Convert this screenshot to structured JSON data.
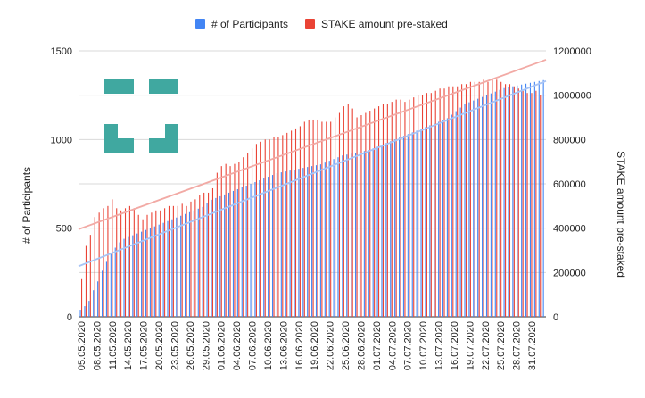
{
  "chart_data": {
    "type": "bar",
    "title": "",
    "legend": {
      "position": "top",
      "items": [
        {
          "name": "# of Participants",
          "color": "#4285f4"
        },
        {
          "name": "STAKE amount pre-staked",
          "color": "#ea4335"
        }
      ]
    },
    "left_axis": {
      "label": "# of Participants",
      "ylim": [
        0,
        1500
      ],
      "ticks": [
        "0",
        "500",
        "1000",
        "1500"
      ]
    },
    "right_axis": {
      "label": "STAKE amount pre-staked",
      "ylim": [
        0,
        1200000
      ],
      "ticks": [
        "0",
        "200000",
        "400000",
        "600000",
        "800000",
        "1000000",
        "1200000"
      ]
    },
    "x_tick_labels": [
      "05.05.2020",
      "08.05.2020",
      "11.05.2020",
      "14.05.2020",
      "17.05.2020",
      "20.05.2020",
      "23.05.2020",
      "26.05.2020",
      "29.05.2020",
      "01.06.2020",
      "04.06.2020",
      "07.06.2020",
      "10.06.2020",
      "13.06.2020",
      "16.06.2020",
      "19.06.2020",
      "22.06.2020",
      "25.06.2020",
      "28.06.2020",
      "01.07.2020",
      "04.07.2020",
      "07.07.2020",
      "10.07.2020",
      "13.07.2020",
      "16.07.2020",
      "19.07.2020",
      "22.07.2020",
      "25.07.2020",
      "28.07.2020",
      "31.07.2020"
    ],
    "gridlines": true,
    "series": [
      {
        "name": "# of Participants",
        "axis": "left",
        "color": "#4285f4",
        "values": [
          40,
          60,
          90,
          150,
          200,
          260,
          310,
          360,
          390,
          420,
          440,
          450,
          460,
          470,
          480,
          490,
          500,
          510,
          520,
          530,
          540,
          550,
          560,
          570,
          580,
          590,
          600,
          610,
          620,
          640,
          660,
          670,
          680,
          690,
          700,
          710,
          720,
          730,
          740,
          750,
          760,
          770,
          780,
          790,
          800,
          810,
          815,
          820,
          825,
          830,
          835,
          840,
          845,
          850,
          855,
          860,
          870,
          880,
          890,
          900,
          910,
          915,
          920,
          925,
          930,
          935,
          940,
          950,
          960,
          970,
          980,
          990,
          1000,
          1010,
          1020,
          1030,
          1040,
          1050,
          1060,
          1070,
          1080,
          1090,
          1100,
          1110,
          1120,
          1140,
          1160,
          1180,
          1200,
          1210,
          1220,
          1230,
          1240,
          1250,
          1260,
          1270,
          1280,
          1290,
          1295,
          1300,
          1305,
          1310,
          1315,
          1320,
          1325,
          1330,
          1335
        ]
      },
      {
        "name": "STAKE amount pre-staked",
        "axis": "right",
        "color": "#ea4335",
        "values": [
          170000,
          320000,
          370000,
          450000,
          470000,
          490000,
          500000,
          530000,
          490000,
          480000,
          490000,
          500000,
          490000,
          460000,
          440000,
          460000,
          470000,
          480000,
          480000,
          490000,
          500000,
          500000,
          500000,
          510000,
          500000,
          520000,
          530000,
          550000,
          560000,
          560000,
          580000,
          650000,
          680000,
          690000,
          680000,
          690000,
          700000,
          720000,
          740000,
          760000,
          780000,
          790000,
          800000,
          800000,
          810000,
          810000,
          820000,
          830000,
          840000,
          850000,
          860000,
          880000,
          890000,
          890000,
          890000,
          880000,
          880000,
          880000,
          900000,
          920000,
          950000,
          960000,
          940000,
          900000,
          910000,
          920000,
          930000,
          940000,
          950000,
          960000,
          960000,
          970000,
          980000,
          980000,
          970000,
          980000,
          990000,
          1000000,
          1000000,
          1010000,
          1010000,
          1020000,
          1030000,
          1030000,
          1040000,
          1040000,
          1040000,
          1050000,
          1050000,
          1060000,
          1060000,
          1060000,
          1070000,
          1060000,
          1070000,
          1070000,
          1060000,
          1050000,
          1050000,
          1040000,
          1030000,
          1020000,
          1010000,
          1010000,
          1020000,
          1000000
        ]
      }
    ],
    "trendlines": [
      {
        "series": "# of Participants",
        "axis": "left",
        "color": "#a8c4f5",
        "from": 285,
        "to": 1330
      },
      {
        "series": "STAKE amount pre-staked",
        "axis": "right",
        "color": "#f2aaa5",
        "from": 395000,
        "to": 1160000
      }
    ],
    "logo": {
      "color": "#40a8a0"
    }
  }
}
